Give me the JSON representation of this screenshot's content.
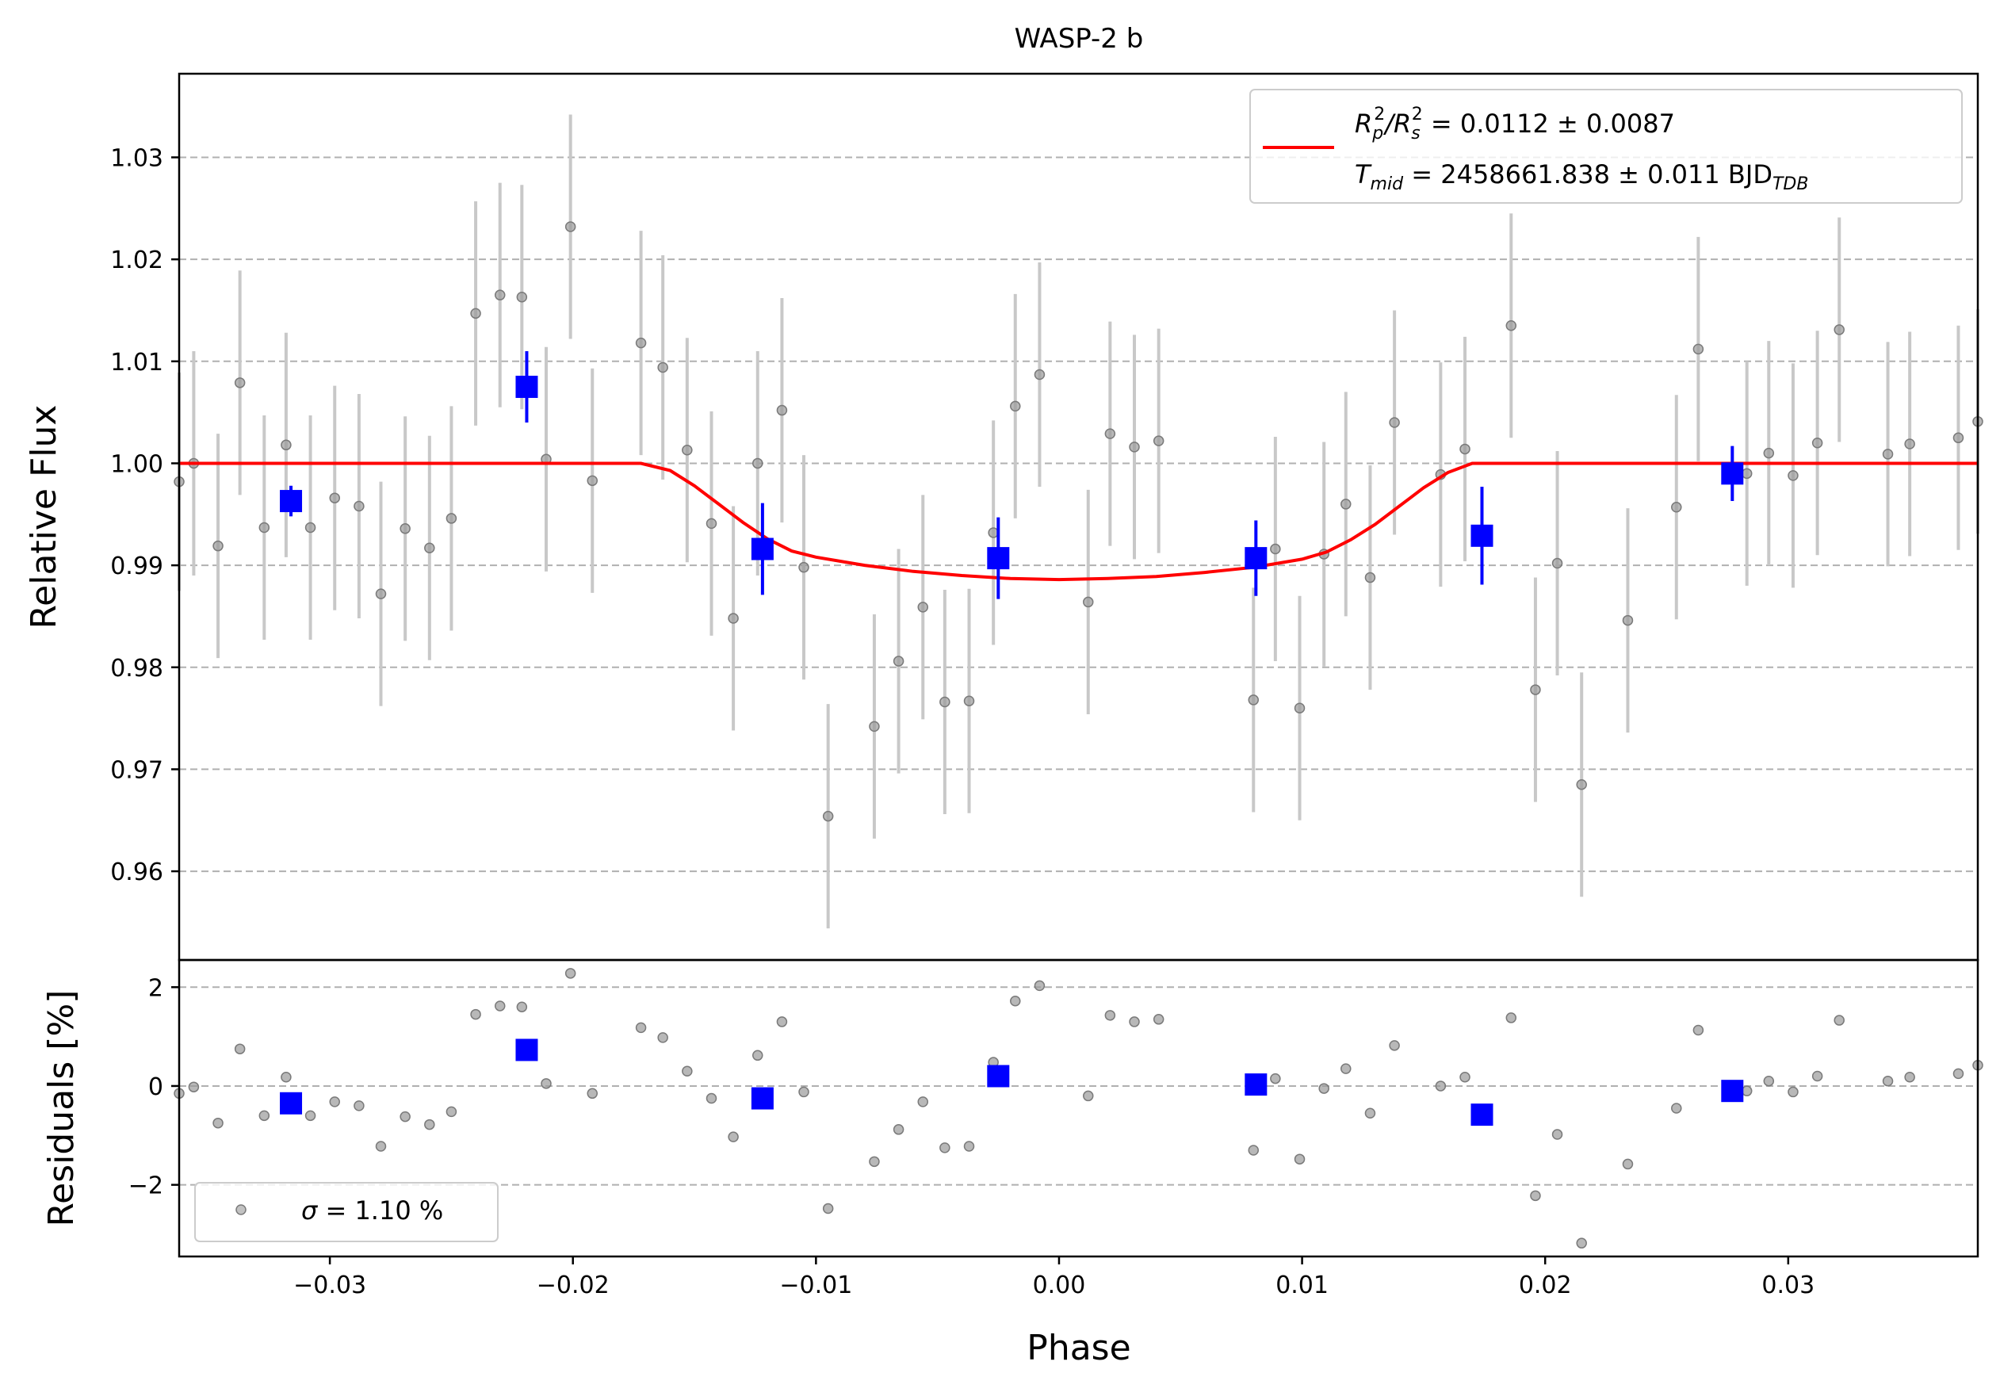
{
  "chart_data": [
    {
      "type": "scatter",
      "panel": "top",
      "title": "WASP-2 b",
      "xlabel": "",
      "ylabel": "Relative Flux",
      "xlim": [
        -0.0362,
        0.0378
      ],
      "ylim": [
        0.9513,
        1.0382
      ],
      "y_ticks": [
        0.96,
        0.97,
        0.98,
        0.99,
        1.0,
        1.01,
        1.02,
        1.03
      ],
      "y_tick_labels": [
        "0.96",
        "0.97",
        "0.98",
        "0.99",
        "1.00",
        "1.01",
        "1.02",
        "1.03"
      ],
      "grid": "horizontal dashed",
      "legend_placement": "top-right",
      "legend": {
        "line1": {
          "ratio": "R",
          "p": "p",
          "two": "2",
          "slash": "/R",
          "s": "s",
          "value": " = 0.0112 ± 0.0087"
        },
        "line2": {
          "T": "T",
          "mid": "mid",
          "value": " = 2458661.838 ± 0.011 BJD",
          "tdb": "TDB"
        }
      },
      "colors": {
        "data": "#9a9a9a",
        "errorbar": "#c8c8c8",
        "binned": "#0000ff",
        "model": "#ff0000",
        "grid": "#b0b0b0"
      },
      "series": [
        {
          "kind": "data",
          "points": [
            [
              -0.0362,
              0.9982,
              0.0107
            ],
            [
              -0.0356,
              1.0,
              0.011
            ],
            [
              -0.0346,
              0.9919,
              0.011
            ],
            [
              -0.0337,
              1.0079,
              0.011
            ],
            [
              -0.0327,
              0.9937,
              0.011
            ],
            [
              -0.0318,
              1.0018,
              0.011
            ],
            [
              -0.0308,
              0.9937,
              0.011
            ],
            [
              -0.0298,
              0.9966,
              0.011
            ],
            [
              -0.0288,
              0.9958,
              0.011
            ],
            [
              -0.0279,
              0.9872,
              0.011
            ],
            [
              -0.0269,
              0.9936,
              0.011
            ],
            [
              -0.0259,
              0.9917,
              0.011
            ],
            [
              -0.025,
              0.9946,
              0.011
            ],
            [
              -0.024,
              1.0147,
              0.011
            ],
            [
              -0.023,
              1.0165,
              0.011
            ],
            [
              -0.0221,
              1.0163,
              0.011
            ],
            [
              -0.0211,
              1.0004,
              0.011
            ],
            [
              -0.0201,
              1.0232,
              0.011
            ],
            [
              -0.0192,
              0.9983,
              0.011
            ],
            [
              -0.0172,
              1.0118,
              0.011
            ],
            [
              -0.0163,
              1.0094,
              0.011
            ],
            [
              -0.0153,
              1.0013,
              0.011
            ],
            [
              -0.0143,
              0.9941,
              0.011
            ],
            [
              -0.0134,
              0.9848,
              0.011
            ],
            [
              -0.0124,
              1.0,
              0.011
            ],
            [
              -0.0114,
              1.0052,
              0.011
            ],
            [
              -0.0105,
              0.9898,
              0.011
            ],
            [
              -0.0095,
              0.9654,
              0.011
            ],
            [
              -0.0076,
              0.9742,
              0.011
            ],
            [
              -0.0066,
              0.9806,
              0.011
            ],
            [
              -0.0056,
              0.9859,
              0.011
            ],
            [
              -0.0047,
              0.9766,
              0.011
            ],
            [
              -0.0037,
              0.9767,
              0.011
            ],
            [
              -0.0027,
              0.9932,
              0.011
            ],
            [
              -0.0018,
              1.0056,
              0.011
            ],
            [
              -0.0008,
              1.0087,
              0.011
            ],
            [
              0.0012,
              0.9864,
              0.011
            ],
            [
              0.0021,
              1.0029,
              0.011
            ],
            [
              0.0031,
              1.0016,
              0.011
            ],
            [
              0.0041,
              1.0022,
              0.011
            ],
            [
              0.008,
              0.9768,
              0.011
            ],
            [
              0.0089,
              0.9916,
              0.011
            ],
            [
              0.0099,
              0.976,
              0.011
            ],
            [
              0.0109,
              0.9911,
              0.011
            ],
            [
              0.0118,
              0.996,
              0.011
            ],
            [
              0.0128,
              0.9888,
              0.011
            ],
            [
              0.0138,
              1.004,
              0.011
            ],
            [
              0.0157,
              0.9989,
              0.011
            ],
            [
              0.0167,
              1.0014,
              0.011
            ],
            [
              0.0186,
              1.0135,
              0.011
            ],
            [
              0.0196,
              0.9778,
              0.011
            ],
            [
              0.0205,
              0.9902,
              0.011
            ],
            [
              0.0215,
              0.9685,
              0.011
            ],
            [
              0.0234,
              0.9846,
              0.011
            ],
            [
              0.0254,
              0.9957,
              0.011
            ],
            [
              0.0263,
              1.0112,
              0.011
            ],
            [
              0.0283,
              0.999,
              0.011
            ],
            [
              0.0292,
              1.001,
              0.011
            ],
            [
              0.0302,
              0.9988,
              0.011
            ],
            [
              0.0312,
              1.002,
              0.011
            ],
            [
              0.0321,
              1.0131,
              0.011
            ],
            [
              0.0341,
              1.0009,
              0.011
            ],
            [
              0.035,
              1.0019,
              0.011
            ],
            [
              0.037,
              1.0025,
              0.011
            ],
            [
              0.0378,
              1.0041,
              0.011
            ]
          ]
        },
        {
          "kind": "binned",
          "points": [
            [
              -0.0316,
              0.9963,
              0.0015
            ],
            [
              -0.0219,
              1.0075,
              0.0035
            ],
            [
              -0.0122,
              0.9916,
              0.0045
            ],
            [
              -0.0025,
              0.9907,
              0.004
            ],
            [
              0.0081,
              0.9907,
              0.0037
            ],
            [
              0.0174,
              0.9929,
              0.0048
            ],
            [
              0.0277,
              0.999,
              0.0027
            ]
          ]
        },
        {
          "kind": "model",
          "points": [
            [
              -0.0362,
              1.0
            ],
            [
              -0.0172,
              1.0
            ],
            [
              -0.016,
              0.9993
            ],
            [
              -0.015,
              0.9978
            ],
            [
              -0.014,
              0.996
            ],
            [
              -0.013,
              0.9942
            ],
            [
              -0.012,
              0.9926
            ],
            [
              -0.011,
              0.9914
            ],
            [
              -0.01,
              0.9908
            ],
            [
              -0.008,
              0.99
            ],
            [
              -0.006,
              0.9894
            ],
            [
              -0.004,
              0.989
            ],
            [
              -0.002,
              0.9887
            ],
            [
              0.0,
              0.9886
            ],
            [
              0.002,
              0.9887
            ],
            [
              0.004,
              0.9889
            ],
            [
              0.006,
              0.9893
            ],
            [
              0.008,
              0.9898
            ],
            [
              0.01,
              0.9906
            ],
            [
              0.011,
              0.9913
            ],
            [
              0.012,
              0.9925
            ],
            [
              0.013,
              0.994
            ],
            [
              0.014,
              0.9958
            ],
            [
              0.015,
              0.9976
            ],
            [
              0.016,
              0.9991
            ],
            [
              0.017,
              1.0
            ],
            [
              0.0378,
              1.0
            ]
          ]
        }
      ]
    },
    {
      "type": "scatter",
      "panel": "bottom",
      "xlabel": "Phase",
      "ylabel": "Residuals [%]",
      "xlim": [
        -0.0362,
        0.0378
      ],
      "ylim": [
        -3.45,
        2.55
      ],
      "x_ticks": [
        -0.03,
        -0.02,
        -0.01,
        0.0,
        0.01,
        0.02,
        0.03
      ],
      "x_tick_labels": [
        "−0.03",
        "−0.02",
        "−0.01",
        "0.00",
        "0.01",
        "0.02",
        "0.03"
      ],
      "y_ticks": [
        -2,
        0,
        2
      ],
      "y_tick_labels": [
        "−2",
        "0",
        "2"
      ],
      "grid": "horizontal dashed",
      "legend_placement": "bottom-left",
      "legend": {
        "sigma": "σ",
        "value": " = 1.10 %"
      },
      "series": [
        {
          "kind": "data",
          "points": [
            [
              -0.0362,
              -0.15
            ],
            [
              -0.0356,
              -0.02
            ],
            [
              -0.0346,
              -0.75
            ],
            [
              -0.0337,
              0.75
            ],
            [
              -0.0327,
              -0.6
            ],
            [
              -0.0318,
              0.18
            ],
            [
              -0.0308,
              -0.6
            ],
            [
              -0.0298,
              -0.32
            ],
            [
              -0.0288,
              -0.4
            ],
            [
              -0.0279,
              -1.22
            ],
            [
              -0.0269,
              -0.62
            ],
            [
              -0.0259,
              -0.78
            ],
            [
              -0.025,
              -0.52
            ],
            [
              -0.024,
              1.45
            ],
            [
              -0.023,
              1.62
            ],
            [
              -0.0221,
              1.6
            ],
            [
              -0.0211,
              0.05
            ],
            [
              -0.0201,
              2.28
            ],
            [
              -0.0192,
              -0.15
            ],
            [
              -0.0172,
              1.18
            ],
            [
              -0.0163,
              0.98
            ],
            [
              -0.0153,
              0.3
            ],
            [
              -0.0143,
              -0.25
            ],
            [
              -0.0134,
              -1.03
            ],
            [
              -0.0124,
              0.62
            ],
            [
              -0.0114,
              1.3
            ],
            [
              -0.0105,
              -0.12
            ],
            [
              -0.0095,
              -2.48
            ],
            [
              -0.0076,
              -1.53
            ],
            [
              -0.0066,
              -0.88
            ],
            [
              -0.0056,
              -0.32
            ],
            [
              -0.0047,
              -1.25
            ],
            [
              -0.0037,
              -1.22
            ],
            [
              -0.0027,
              0.48
            ],
            [
              -0.0018,
              1.72
            ],
            [
              -0.0008,
              2.03
            ],
            [
              0.0012,
              -0.2
            ],
            [
              0.0021,
              1.43
            ],
            [
              0.0031,
              1.3
            ],
            [
              0.0041,
              1.35
            ],
            [
              0.008,
              -1.3
            ],
            [
              0.0089,
              0.15
            ],
            [
              0.0099,
              -1.48
            ],
            [
              0.0109,
              -0.05
            ],
            [
              0.0118,
              0.35
            ],
            [
              0.0128,
              -0.55
            ],
            [
              0.0138,
              0.82
            ],
            [
              0.0157,
              0.0
            ],
            [
              0.0167,
              0.18
            ],
            [
              0.0186,
              1.38
            ],
            [
              0.0196,
              -2.22
            ],
            [
              0.0205,
              -0.98
            ],
            [
              0.0215,
              -3.18
            ],
            [
              0.0234,
              -1.58
            ],
            [
              0.0254,
              -0.45
            ],
            [
              0.0263,
              1.13
            ],
            [
              0.0283,
              -0.1
            ],
            [
              0.0292,
              0.1
            ],
            [
              0.0302,
              -0.12
            ],
            [
              0.0312,
              0.2
            ],
            [
              0.0321,
              1.33
            ],
            [
              0.0341,
              0.1
            ],
            [
              0.035,
              0.18
            ],
            [
              0.037,
              0.25
            ],
            [
              0.0378,
              0.42
            ]
          ]
        },
        {
          "kind": "binned",
          "points": [
            [
              -0.0316,
              -0.35
            ],
            [
              -0.0219,
              0.73
            ],
            [
              -0.0122,
              -0.25
            ],
            [
              -0.0025,
              0.2
            ],
            [
              0.0081,
              0.03
            ],
            [
              0.0174,
              -0.58
            ],
            [
              0.0277,
              -0.1
            ]
          ]
        }
      ]
    }
  ]
}
